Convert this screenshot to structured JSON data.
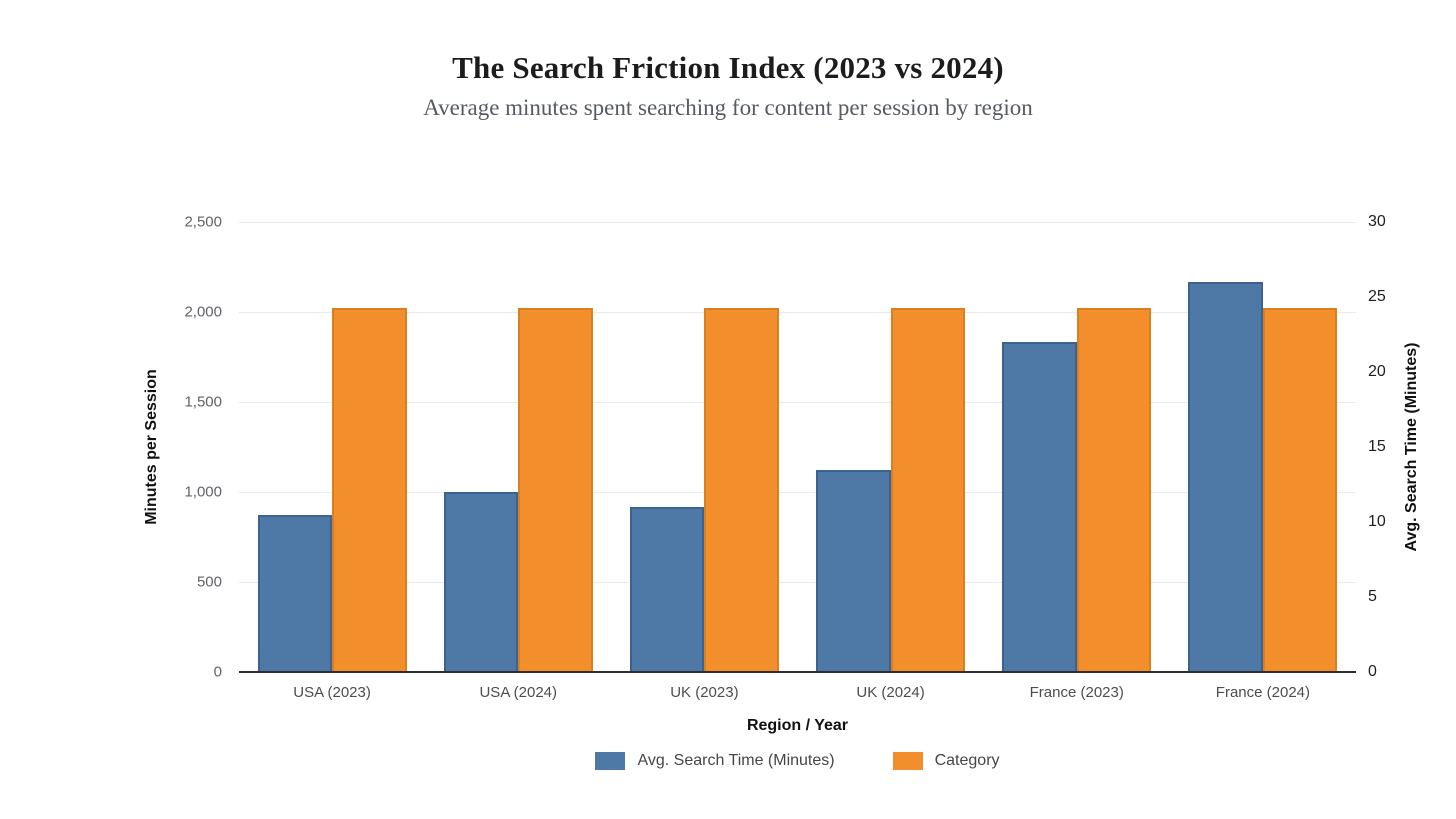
{
  "header": {
    "title": "The Search Friction Index (2023 vs 2024)",
    "subtitle": "Average minutes spent searching for content per session by region"
  },
  "chart_data": {
    "type": "bar",
    "categories": [
      "USA (2023)",
      "USA (2024)",
      "UK (2023)",
      "UK (2024)",
      "France (2023)",
      "France (2024)"
    ],
    "series": [
      {
        "name": "Avg. Search Time (Minutes)",
        "axis": "right",
        "color": "#4e79a7",
        "border_color": "#3b6290",
        "values": [
          10.5,
          12,
          11,
          13.5,
          22,
          26
        ]
      },
      {
        "name": "Category",
        "axis": "left",
        "color": "#f28e2b",
        "border_color": "#d97f1e",
        "values": [
          2023,
          2024,
          2023,
          2024,
          2023,
          2024
        ]
      }
    ],
    "left_axis": {
      "label": "Minutes per Session",
      "min": 0,
      "max": 2500,
      "tick_values": [
        0,
        500,
        1000,
        1500,
        2000,
        2500
      ],
      "tick_labels": [
        "0",
        "500",
        "1,000",
        "1,500",
        "2,000",
        "2,500"
      ]
    },
    "right_axis": {
      "label": "Avg. Search Time (Minutes)",
      "min": 0,
      "max": 30,
      "tick_values": [
        0,
        5,
        10,
        15,
        20,
        25,
        30
      ],
      "tick_labels": [
        "0",
        "5",
        "10",
        "15",
        "20",
        "25",
        "30"
      ]
    },
    "x_axis": {
      "label": "Region / Year"
    },
    "legend": [
      {
        "label": "Avg. Search Time (Minutes)",
        "color": "#4e79a7"
      },
      {
        "label": "Category",
        "color": "#f28e2b"
      }
    ],
    "grid": true,
    "legend_position": "bottom",
    "background": "#ffffff"
  }
}
